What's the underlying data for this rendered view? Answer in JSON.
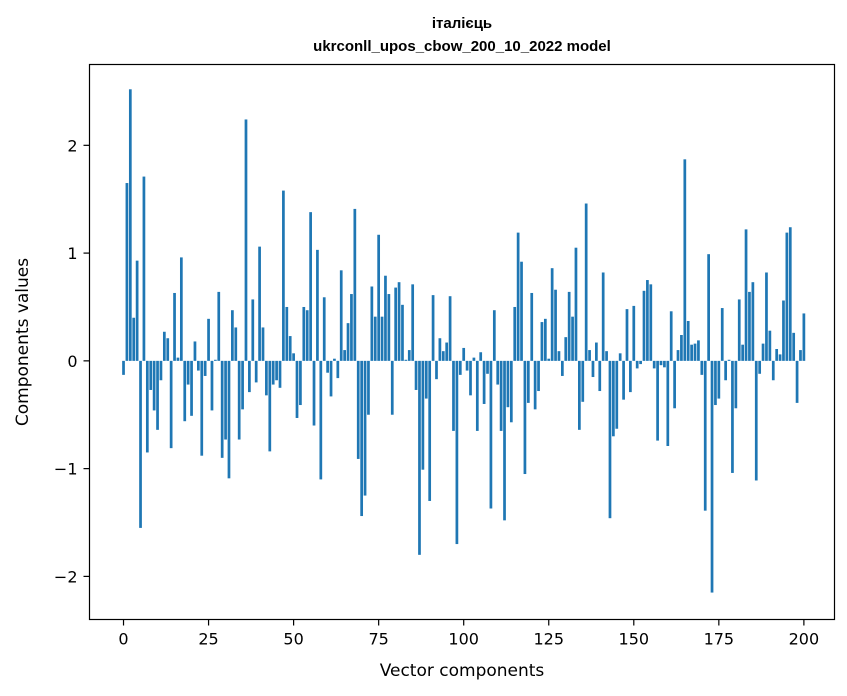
{
  "chart_data": {
    "type": "bar",
    "title_line1": "італієць",
    "title_line2": "ukrconll_upos_cbow_200_10_2022 model",
    "xlabel": "Vector components",
    "ylabel": "Components values",
    "xlim": [
      -10,
      209
    ],
    "ylim": [
      -2.4,
      2.75
    ],
    "x_ticks": [
      0,
      25,
      50,
      75,
      100,
      125,
      150,
      175,
      200
    ],
    "y_ticks": [
      -2,
      -1,
      0,
      1,
      2
    ],
    "y_tick_labels": [
      "−2",
      "−1",
      "0",
      "1",
      "2"
    ],
    "bar_color": "#1f77b4",
    "grid": false,
    "values": [
      -0.13,
      1.65,
      2.52,
      0.4,
      0.93,
      -1.55,
      1.71,
      -0.85,
      -0.27,
      -0.46,
      -0.64,
      -0.18,
      0.27,
      0.21,
      -0.81,
      0.63,
      0.03,
      0.96,
      -0.56,
      -0.22,
      -0.51,
      0.18,
      -0.09,
      -0.88,
      -0.14,
      0.39,
      -0.46,
      0.01,
      0.64,
      -0.9,
      -0.73,
      -1.09,
      0.47,
      0.31,
      -0.73,
      -0.45,
      2.24,
      -0.29,
      0.57,
      -0.2,
      1.06,
      0.31,
      -0.32,
      -0.84,
      -0.22,
      -0.18,
      -0.25,
      1.58,
      0.5,
      0.23,
      0.07,
      -0.53,
      -0.41,
      0.5,
      0.47,
      1.38,
      -0.6,
      1.03,
      -1.1,
      0.59,
      -0.11,
      -0.33,
      0.02,
      -0.16,
      0.84,
      0.1,
      0.35,
      0.62,
      1.41,
      -0.91,
      -1.44,
      -1.25,
      -0.5,
      0.69,
      0.41,
      1.17,
      0.41,
      0.79,
      0.62,
      -0.5,
      0.68,
      0.73,
      0.52,
      0.01,
      0.1,
      0.71,
      -0.27,
      -1.8,
      -1.01,
      -0.35,
      -1.3,
      0.61,
      -0.17,
      0.21,
      0.09,
      0.17,
      0.6,
      -0.65,
      -1.7,
      -0.13,
      0.12,
      -0.09,
      -0.32,
      0.03,
      -0.65,
      0.08,
      -0.4,
      -0.12,
      -1.37,
      0.47,
      -0.22,
      -0.65,
      -1.48,
      -0.43,
      -0.57,
      0.5,
      1.19,
      0.92,
      -1.05,
      -0.39,
      0.63,
      -0.45,
      -0.28,
      0.36,
      0.39,
      0.02,
      0.86,
      0.66,
      0.09,
      -0.14,
      0.22,
      0.64,
      0.41,
      1.05,
      -0.64,
      -0.38,
      1.46,
      0.1,
      -0.15,
      0.17,
      -0.28,
      0.82,
      0.09,
      -1.46,
      -0.7,
      -0.63,
      0.07,
      -0.36,
      0.48,
      -0.29,
      0.51,
      -0.07,
      -0.03,
      0.65,
      0.75,
      0.71,
      -0.07,
      -0.74,
      -0.04,
      -0.06,
      -0.79,
      0.46,
      -0.44,
      0.1,
      0.24,
      1.87,
      0.37,
      0.15,
      0.16,
      0.19,
      -0.13,
      -1.39,
      0.99,
      -2.15,
      -0.41,
      -0.35,
      0.49,
      -0.18,
      0.01,
      -1.04,
      -0.44,
      0.57,
      0.15,
      1.22,
      0.64,
      0.73,
      -1.11,
      -0.12,
      0.16,
      0.82,
      0.28,
      -0.18,
      0.11,
      0.06,
      0.56,
      1.19,
      1.24,
      0.26,
      -0.39,
      0.1,
      0.44
    ]
  }
}
